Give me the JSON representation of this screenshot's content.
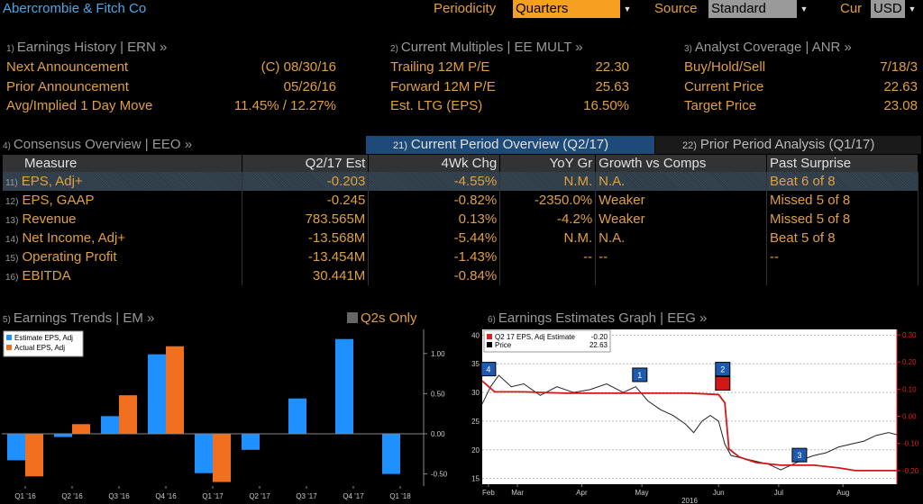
{
  "header": {
    "company": "Abercrombie & Fitch Co",
    "periodicity_label": "Periodicity",
    "periodicity_value": "Quarters",
    "source_label": "Source",
    "source_value": "Standard",
    "cur_label": "Cur",
    "cur_value": "USD"
  },
  "earnings_history": {
    "num": "1)",
    "title": "Earnings History | ERN »",
    "rows": [
      {
        "label": "Next Announcement",
        "value": "(C)  08/30/16"
      },
      {
        "label": "Prior Announcement",
        "value": "05/26/16"
      },
      {
        "label": "Avg/Implied 1 Day Move",
        "value": "11.45% / 12.27%"
      }
    ]
  },
  "current_multiples": {
    "num": "2)",
    "title": "Current Multiples | EE MULT »",
    "rows": [
      {
        "label": "Trailing 12M P/E",
        "value": "22.30"
      },
      {
        "label": "Forward 12M P/E",
        "value": "25.63"
      },
      {
        "label": "Est. LTG (EPS)",
        "value": "16.50%"
      }
    ]
  },
  "analyst_coverage": {
    "num": "3)",
    "title": "Analyst Coverage | ANR »",
    "rows": [
      {
        "label": "Buy/Hold/Sell",
        "value": "7/18/3"
      },
      {
        "label": "Current Price",
        "value": "22.63"
      },
      {
        "label": "Target Price",
        "value": "23.08"
      }
    ]
  },
  "consensus": {
    "num": "4)",
    "title": "Consensus Overview | EEO »",
    "tab_active_num": "21)",
    "tab_active": "Current Period Overview (Q2/17)",
    "tab_inactive_num": "22)",
    "tab_inactive": "Prior Period Analysis (Q1/17)",
    "headers": [
      "Measure",
      "Q2/17 Est",
      "4Wk Chg",
      "YoY Gr",
      "Growth vs Comps",
      "Past Surprise"
    ],
    "rows": [
      {
        "num": "11)",
        "measure": "EPS, Adj+",
        "est": "-0.203",
        "chg": "-4.55%",
        "yoy": "N.M.",
        "comps": "N.A.",
        "surprise": "Beat 6 of 8"
      },
      {
        "num": "12)",
        "measure": "EPS, GAAP",
        "est": "-0.245",
        "chg": "-0.82%",
        "yoy": "-2350.0%",
        "comps": "Weaker",
        "surprise": "Missed 5 of 8"
      },
      {
        "num": "13)",
        "measure": "Revenue",
        "est": "783.565M",
        "chg": "0.13%",
        "yoy": "-4.2%",
        "comps": "Weaker",
        "surprise": "Missed 5 of 8"
      },
      {
        "num": "14)",
        "measure": "Net Income, Adj+",
        "est": "-13.568M",
        "chg": "-5.44%",
        "yoy": "N.M.",
        "comps": "N.A.",
        "surprise": "Beat 5 of 8"
      },
      {
        "num": "15)",
        "measure": "Operating Profit",
        "est": "-13.454M",
        "chg": "-1.43%",
        "yoy": "--",
        "comps": "--",
        "surprise": "--"
      },
      {
        "num": "16)",
        "measure": "EBITDA",
        "est": "30.441M",
        "chg": "-0.84%",
        "yoy": "",
        "comps": "",
        "surprise": ""
      }
    ]
  },
  "earnings_trends": {
    "num": "5)",
    "title": "Earnings Trends | EM »",
    "toggle_label": "Q2s Only",
    "chart_data": {
      "type": "bar",
      "categories": [
        "Q1 '16",
        "Q2 '16",
        "Q3 '16",
        "Q4 '16",
        "Q1 '17",
        "Q2 '17",
        "Q3 '17",
        "Q4 '17",
        "Q1 '18"
      ],
      "series": [
        {
          "name": "Estimate EPS, Adj",
          "color": "#1e90ff",
          "values": [
            -0.33,
            -0.04,
            0.22,
            0.99,
            -0.49,
            -0.2,
            0.44,
            1.18,
            -0.5
          ]
        },
        {
          "name": "Actual EPS, Adj",
          "color": "#f07020",
          "values": [
            -0.53,
            0.12,
            0.48,
            1.09,
            -0.6,
            null,
            null,
            null,
            null
          ]
        }
      ],
      "yticks": [
        "1.00",
        "0.50",
        "0.00",
        "-0.50"
      ],
      "ylim": [
        -0.65,
        1.3
      ]
    }
  },
  "estimates_graph": {
    "num": "6)",
    "title": "Earnings Estimates Graph | EEG »",
    "chart_data": {
      "type": "line",
      "legend": [
        {
          "name": "Q2 17 EPS, Adj Estimate",
          "value": "-0.20",
          "color": "#e02020"
        },
        {
          "name": "Price",
          "value": "22.63",
          "color": "#ffffff"
        }
      ],
      "x_labels": [
        "Feb",
        "Mar",
        "Apr",
        "May",
        "Jun",
        "Jul",
        "Aug"
      ],
      "x_year": "2016",
      "left_ticks": [
        "40",
        "35",
        "30",
        "25",
        "20",
        "15"
      ],
      "right_ticks": [
        "0.30",
        "0.20",
        "0.10",
        "0.00",
        "-0.10",
        "-0.20"
      ],
      "left_range": [
        14,
        41
      ],
      "right_range": [
        -0.25,
        0.32
      ],
      "estimate": [
        [
          0,
          0.13
        ],
        [
          0.03,
          0.09
        ],
        [
          0.1,
          0.09
        ],
        [
          0.2,
          0.085
        ],
        [
          0.3,
          0.085
        ],
        [
          0.4,
          0.085
        ],
        [
          0.5,
          0.085
        ],
        [
          0.57,
          0.08
        ],
        [
          0.585,
          0.05
        ],
        [
          0.595,
          -0.12
        ],
        [
          0.62,
          -0.15
        ],
        [
          0.66,
          -0.17
        ],
        [
          0.72,
          -0.18
        ],
        [
          0.8,
          -0.18
        ],
        [
          0.86,
          -0.19
        ],
        [
          0.9,
          -0.2
        ],
        [
          1.0,
          -0.2
        ]
      ],
      "price": [
        [
          0,
          28
        ],
        [
          0.02,
          31
        ],
        [
          0.04,
          33
        ],
        [
          0.07,
          31
        ],
        [
          0.1,
          31.5
        ],
        [
          0.14,
          29.5
        ],
        [
          0.18,
          31
        ],
        [
          0.22,
          30
        ],
        [
          0.26,
          30.5
        ],
        [
          0.3,
          31.5
        ],
        [
          0.34,
          30
        ],
        [
          0.37,
          31
        ],
        [
          0.4,
          28.5
        ],
        [
          0.43,
          27
        ],
        [
          0.46,
          26
        ],
        [
          0.49,
          24.5
        ],
        [
          0.51,
          23
        ],
        [
          0.53,
          25
        ],
        [
          0.55,
          26
        ],
        [
          0.57,
          25
        ],
        [
          0.585,
          21
        ],
        [
          0.6,
          19
        ],
        [
          0.63,
          18.5
        ],
        [
          0.66,
          18
        ],
        [
          0.69,
          17.5
        ],
        [
          0.72,
          16.5
        ],
        [
          0.75,
          17.5
        ],
        [
          0.78,
          18.5
        ],
        [
          0.8,
          19
        ],
        [
          0.83,
          19.5
        ],
        [
          0.86,
          20.5
        ],
        [
          0.89,
          21
        ],
        [
          0.92,
          21.5
        ],
        [
          0.95,
          22.5
        ],
        [
          0.98,
          23
        ],
        [
          1.0,
          22.63
        ]
      ],
      "markers": [
        {
          "label": "4",
          "color": "#1e5ab0",
          "x": 0.015,
          "y": 34
        },
        {
          "label": "1",
          "color": "#1e5ab0",
          "x": 0.38,
          "y": 33
        },
        {
          "label": "2",
          "color": "#1e5ab0",
          "x": 0.58,
          "y": 34
        },
        {
          "label": "",
          "color": "#d01818",
          "x": 0.58,
          "y": 31.5
        },
        {
          "label": "3",
          "color": "#1e5ab0",
          "x": 0.765,
          "y": 19
        }
      ]
    }
  }
}
